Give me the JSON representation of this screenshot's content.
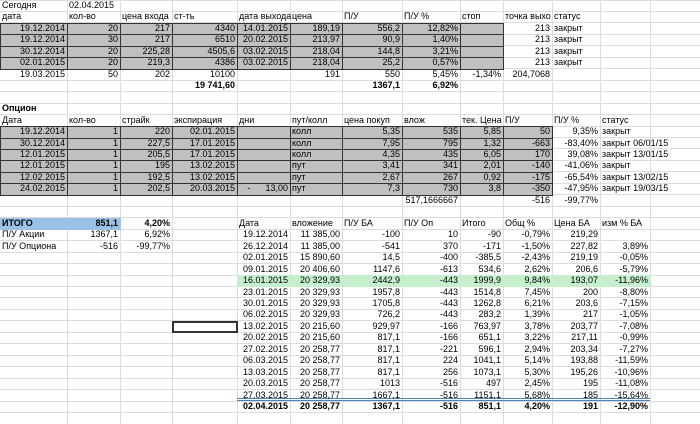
{
  "today": {
    "label": "Сегодня",
    "date": "02.04.2015"
  },
  "stocks": {
    "header": [
      "дата",
      "кол-во",
      "цена входа",
      "ст-ть",
      "дата выхода",
      "цена",
      "П/У",
      "П/У %",
      "стоп",
      "точка выхо",
      "статус"
    ],
    "rows": [
      [
        "19.12.2014",
        "20",
        "217",
        "4340",
        "14.01.2015",
        "189,19",
        "556,2",
        "12,82%",
        null,
        "213",
        "закрыт"
      ],
      [
        "19.12.2014",
        "30",
        "217",
        "6510",
        "20.02.2015",
        "213,97",
        "90,9",
        "1,40%",
        null,
        "213",
        "закрыт"
      ],
      [
        "30.12.2014",
        "20",
        "225,28",
        "4505,6",
        "03.02.2015",
        "218,04",
        "144,8",
        "3,21%",
        null,
        "213",
        "закрыт"
      ],
      [
        "02.01.2015",
        "20",
        "219,3",
        "4386",
        "03.02.2015",
        "218,04",
        "25,2",
        "0,57%",
        null,
        "213",
        "закрыт"
      ],
      [
        "19.03.2015",
        "50",
        "202",
        "10100",
        null,
        "191",
        "550",
        "5,45%",
        "-1,34%",
        "204,7068",
        null
      ]
    ],
    "totals": {
      "cost": "19 741,60",
      "pnl": "1367,1",
      "pnl_pct": "6,92%"
    }
  },
  "options": {
    "title": "Опцион",
    "header": [
      "Дата",
      "кол-во",
      "страйк",
      "экспирация",
      "дни",
      "пут/колл",
      "цена покуп",
      "влож",
      "тек. Цена",
      "П/У",
      "П/У %",
      "статус"
    ],
    "rows": [
      [
        "19.12.2014",
        "1",
        "220",
        "02.01.2015",
        null,
        "колл",
        "5,35",
        "535",
        "5,85",
        "50",
        "9,35%",
        "закрыт"
      ],
      [
        "30.12.2014",
        "1",
        "227,5",
        "17.01.2015",
        null,
        "колл",
        "7,95",
        "795",
        "1,32",
        "-663",
        "-83,40%",
        "закрыт 06/01/15"
      ],
      [
        "12.01.2015",
        "1",
        "205,5",
        "17.01.2015",
        null,
        "колл",
        "4,35",
        "435",
        "6,05",
        "170",
        "39,08%",
        "закрыт 13/01/15"
      ],
      [
        "12.01.2015",
        "1",
        "195",
        "13.02.2015",
        null,
        "пут",
        "3,41",
        "341",
        "2,01",
        "-140",
        "-41,06%",
        "закрыт"
      ],
      [
        "12.02.2015",
        "1",
        "192,5",
        "13.02.2015",
        null,
        "пут",
        "2,67",
        "267",
        "0,92",
        "-175",
        "-65,54%",
        "закрыт 13/02/15"
      ],
      [
        "24.02.2015",
        "1",
        "202,5",
        "20.03.2015",
        "-      13,00",
        "пут",
        "7,3",
        "730",
        "3,8",
        "-350",
        "-47,95%",
        "закрыт 19/03/15"
      ]
    ],
    "totals": {
      "invested": "517,1666667",
      "pnl": "-516",
      "pnl_pct": "-99,77%"
    }
  },
  "summary": {
    "rows": [
      [
        "ИТОГО",
        "851,1",
        "4,20%"
      ],
      [
        "П/У Акции",
        "1367,1",
        "6,92%"
      ],
      [
        "П/У Опциона",
        "-516",
        "-99,77%"
      ]
    ]
  },
  "history": {
    "header": [
      "Дата",
      "вложение",
      "П/У БА",
      "П/У Оп",
      "Итого",
      "Общ %",
      "Цена БА",
      "изм % БА"
    ],
    "rows": [
      [
        "19.12.2014",
        "11 385,00",
        "-100",
        "10",
        "-90",
        "-0,79%",
        "219,29",
        null
      ],
      [
        "26.12.2014",
        "11 385,00",
        "-541",
        "370",
        "-171",
        "-1,50%",
        "227,82",
        "3,89%"
      ],
      [
        "02.01.2015",
        "15 890,60",
        "14,5",
        "-400",
        "-385,5",
        "-2,43%",
        "219,19",
        "-0,05%"
      ],
      [
        "09.01.2015",
        "20 406,60",
        "1147,6",
        "-613",
        "534,6",
        "2,62%",
        "206,6",
        "-5,79%"
      ],
      [
        "16.01.2015",
        "20 329,93",
        "2442,9",
        "-443",
        "1999,9",
        "9,84%",
        "193,07",
        "-11,96%"
      ],
      [
        "23.01.2015",
        "20 329,93",
        "1957,8",
        "-443",
        "1514,8",
        "7,45%",
        "200",
        "-8,80%"
      ],
      [
        "30.01.2015",
        "20 329,93",
        "1705,8",
        "-443",
        "1262,8",
        "6,21%",
        "203,6",
        "-7,15%"
      ],
      [
        "06.02.2015",
        "20 329,93",
        "726,2",
        "-443",
        "283,2",
        "1,39%",
        "217",
        "-1,05%"
      ],
      [
        "13.02.2015",
        "20 215,60",
        "929,97",
        "-166",
        "763,97",
        "3,78%",
        "203,77",
        "-7,08%"
      ],
      [
        "20.02.2015",
        "20 215,60",
        "817,1",
        "-166",
        "651,1",
        "3,22%",
        "217,11",
        "-0,99%"
      ],
      [
        "27.02.2015",
        "20 258,77",
        "817,1",
        "-221",
        "596,1",
        "2,94%",
        "203,34",
        "-7,27%"
      ],
      [
        "06.03.2015",
        "20 258,77",
        "817,1",
        "224",
        "1041,1",
        "5,14%",
        "193,88",
        "-11,59%"
      ],
      [
        "13.03.2015",
        "20 258,77",
        "817,1",
        "256",
        "1073,1",
        "5,30%",
        "195,26",
        "-10,96%"
      ],
      [
        "20.03.2015",
        "20 258,77",
        "1013",
        "-516",
        "497",
        "2,45%",
        "195",
        "-11,08%"
      ],
      [
        "27.03.2015",
        "20 258,77",
        "1667,1",
        "-516",
        "1151,1",
        "5,68%",
        "185",
        "-15,64%"
      ],
      [
        "02.04.2015",
        "20 258,77",
        "1367,1",
        "-516",
        "851,1",
        "4,20%",
        "191",
        "-12,90%"
      ]
    ]
  }
}
